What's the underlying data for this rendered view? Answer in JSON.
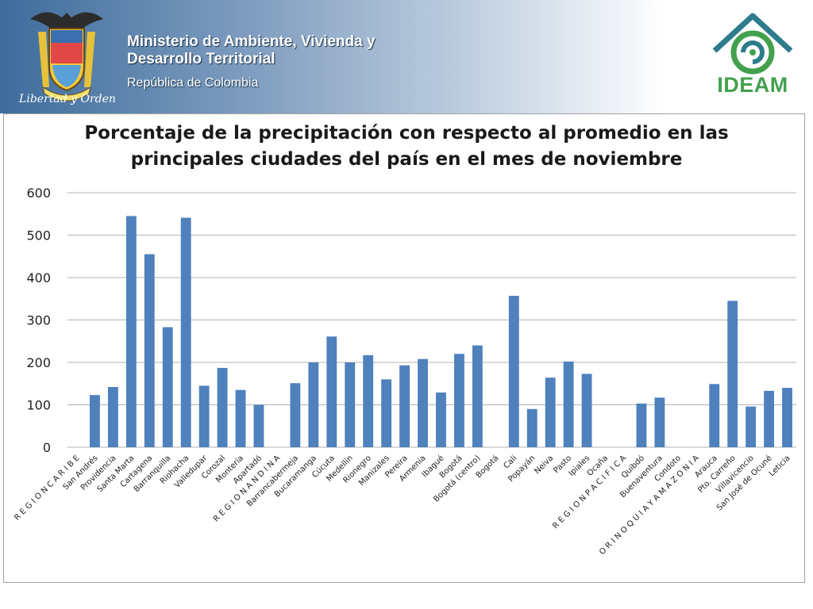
{
  "header": {
    "ministry_line1": "Ministerio de Ambiente, Vivienda y",
    "ministry_line2": "Desarrollo Territorial",
    "republic": "República de Colombia",
    "seal_caption": "Libertad y Orden",
    "logo_text": "IDEAM"
  },
  "colors": {
    "bar": "#4f81bd",
    "gridline": "#b3b3b3",
    "banner_dark": "#3e6c9c",
    "ideam_green": "#43a14d",
    "ideam_blue": "#2d7c8c"
  },
  "chart_data": {
    "type": "bar",
    "title_line1": "Porcentaje de la precipitación con respecto al promedio en las",
    "title_line2": "principales ciudades del país en el mes de noviembre",
    "ylim": [
      0,
      600
    ],
    "yticks": [
      0,
      100,
      200,
      300,
      400,
      500,
      600
    ],
    "grid": true,
    "categories": [
      "R E G I O N  C A R I B E",
      "San Andrés",
      "Providencia",
      "Santa Marta",
      "Cartagena",
      "Barranquilla",
      "Riohacha",
      "Valledupar",
      "Corozal",
      "Montería",
      "Apartadó",
      "R E G I O N  A N D I N A",
      "Barrancabermeja",
      "Bucaramanga",
      "Cúcuta",
      "Medellín",
      "Rionegro",
      "Manizales",
      "Pereira",
      "Armenia",
      "Ibagué",
      "Bogotá",
      "Bogotá (centro)",
      "Bogotá",
      "Cali",
      "Popayán",
      "Neiva",
      "Pasto",
      "Ipiales",
      "Ocaña",
      "R E G I O N  P A C I F I C A",
      "Quibdó",
      "Buenaventura",
      "Condoto",
      "O R I N O Q U I A  Y  A M A Z O N I A",
      "Arauca",
      "Pto. Carreño",
      "Villavicencio",
      "San José de Ocuné",
      "Leticia"
    ],
    "values": [
      null,
      123,
      142,
      545,
      455,
      283,
      541,
      145,
      187,
      135,
      100,
      null,
      151,
      200,
      261,
      200,
      217,
      160,
      193,
      208,
      129,
      220,
      240,
      null,
      357,
      90,
      164,
      202,
      173,
      null,
      null,
      103,
      117,
      null,
      null,
      149,
      345,
      96,
      133,
      140
    ]
  }
}
